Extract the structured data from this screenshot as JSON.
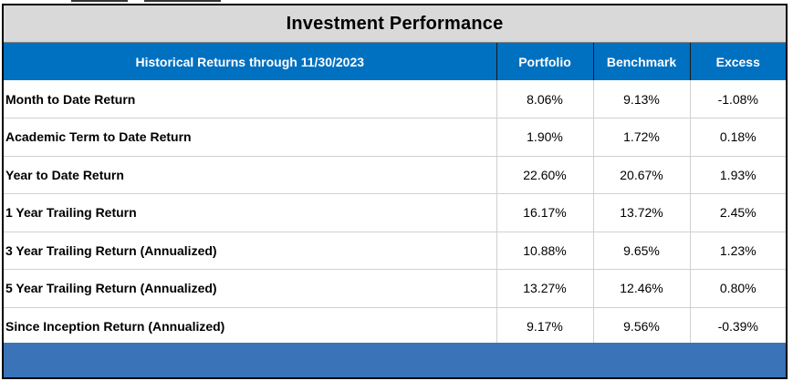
{
  "title": "Investment Performance",
  "header": {
    "label": "Historical Returns through 11/30/2023",
    "portfolio": "Portfolio",
    "benchmark": "Benchmark",
    "excess": "Excess"
  },
  "rows": [
    {
      "label": "Month to Date Return",
      "portfolio": "8.06%",
      "benchmark": "9.13%",
      "excess": "-1.08%"
    },
    {
      "label": "Academic Term to Date Return",
      "portfolio": "1.90%",
      "benchmark": "1.72%",
      "excess": "0.18%"
    },
    {
      "label": "Year to Date Return",
      "portfolio": "22.60%",
      "benchmark": "20.67%",
      "excess": "1.93%"
    },
    {
      "label": "1 Year Trailing Return",
      "portfolio": "16.17%",
      "benchmark": "13.72%",
      "excess": "2.45%"
    },
    {
      "label": "3 Year Trailing Return (Annualized)",
      "portfolio": "10.88%",
      "benchmark": "9.65%",
      "excess": "1.23%"
    },
    {
      "label": "5 Year Trailing Return (Annualized)",
      "portfolio": "13.27%",
      "benchmark": "12.46%",
      "excess": "0.80%"
    },
    {
      "label": "Since Inception Return (Annualized)",
      "portfolio": "9.17%",
      "benchmark": "9.56%",
      "excess": "-0.39%"
    }
  ],
  "colors": {
    "header_blue": "#0070c0",
    "footer_blue": "#3a73b8",
    "title_gray": "#d9d9d9"
  }
}
